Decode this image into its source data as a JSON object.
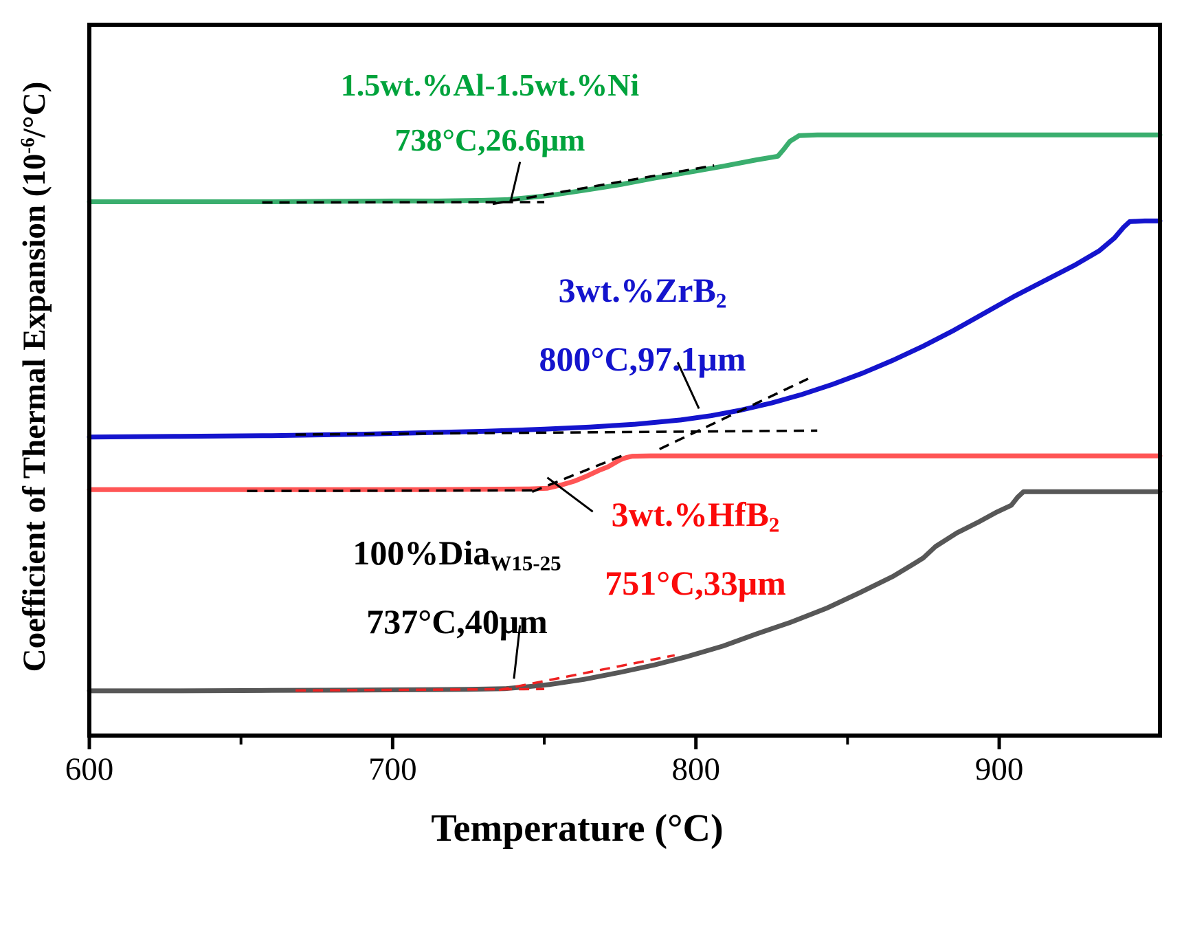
{
  "figure": {
    "y_axis_label": {
      "pre": "Coefficient of Thermal Expansion (10",
      "sup": "-6",
      "post": "/°C)"
    },
    "x_axis_label": "Temperature (°C)"
  },
  "annotations": {
    "al_ni": {
      "line1": "1.5wt.%Al-1.5wt.%Ni",
      "line2": "738°C,26.6μm",
      "color": "#00a33c"
    },
    "zrb2": {
      "line1_main": "3wt.%ZrB",
      "line1_sub": "2",
      "line2": "800°C,97.1μm",
      "color": "#1414cd"
    },
    "hfb2": {
      "line1_main": "3wt.%HfB",
      "line1_sub": "2",
      "line2": "751°C,33μm",
      "color": "#fb0a0a"
    },
    "dia": {
      "line1_main": "100%Dia",
      "line1_sub": "W15-25",
      "line2": "737°C,40μm",
      "color": "#000000"
    }
  },
  "chart_data": {
    "type": "line",
    "title": "",
    "xlabel": "Temperature (°C)",
    "ylabel": "Coefficient of Thermal Expansion (10^-6/°C)",
    "xlim": [
      600,
      953
    ],
    "ylim": [
      0,
      100
    ],
    "grid": false,
    "legend": "inline colored annotations at each curve",
    "x_ticks": {
      "major": [
        600,
        700,
        800,
        900
      ],
      "minor": [
        650,
        750,
        850
      ]
    },
    "y_ticks": [],
    "series": [
      {
        "id": "al-ni",
        "name": "1.5wt.%Al-1.5wt.%Ni",
        "color": "#3aae6e",
        "onset": {
          "temperature_c": 738,
          "expansion_um": 26.6
        },
        "points": [
          [
            600,
            75.1
          ],
          [
            620,
            75.1
          ],
          [
            640,
            75.1
          ],
          [
            660,
            75.1
          ],
          [
            680,
            75.15
          ],
          [
            700,
            75.2
          ],
          [
            715,
            75.2
          ],
          [
            730,
            75.3
          ],
          [
            738,
            75.4
          ],
          [
            745,
            75.7
          ],
          [
            752,
            76.0
          ],
          [
            763,
            76.7
          ],
          [
            775,
            77.5
          ],
          [
            786,
            78.4
          ],
          [
            797,
            79.2
          ],
          [
            809,
            80.1
          ],
          [
            820,
            81.0
          ],
          [
            827,
            81.5
          ],
          [
            829,
            82.5
          ],
          [
            831,
            83.6
          ],
          [
            834,
            84.4
          ],
          [
            840,
            84.5
          ],
          [
            860,
            84.5
          ],
          [
            880,
            84.5
          ],
          [
            900,
            84.5
          ],
          [
            920,
            84.5
          ],
          [
            940,
            84.5
          ],
          [
            953,
            84.5
          ]
        ]
      },
      {
        "id": "zrb2",
        "name": "3wt.%ZrB2",
        "color": "#1414cd",
        "onset": {
          "temperature_c": 800,
          "expansion_um": 97.1
        },
        "points": [
          [
            600,
            42.0
          ],
          [
            630,
            42.1
          ],
          [
            660,
            42.2
          ],
          [
            690,
            42.4
          ],
          [
            710,
            42.6
          ],
          [
            730,
            42.8
          ],
          [
            750,
            43.1
          ],
          [
            765,
            43.4
          ],
          [
            780,
            43.8
          ],
          [
            795,
            44.4
          ],
          [
            805,
            45.0
          ],
          [
            815,
            45.8
          ],
          [
            825,
            46.8
          ],
          [
            835,
            48.0
          ],
          [
            845,
            49.4
          ],
          [
            855,
            51.0
          ],
          [
            865,
            52.8
          ],
          [
            875,
            54.8
          ],
          [
            885,
            57.0
          ],
          [
            895,
            59.4
          ],
          [
            905,
            61.8
          ],
          [
            915,
            64.0
          ],
          [
            925,
            66.2
          ],
          [
            933,
            68.2
          ],
          [
            938,
            70.0
          ],
          [
            941,
            71.5
          ],
          [
            943,
            72.3
          ],
          [
            948,
            72.4
          ],
          [
            953,
            72.4
          ]
        ]
      },
      {
        "id": "hfb2",
        "name": "3wt.%HfB2",
        "color": "#ff5555",
        "onset": {
          "temperature_c": 751,
          "expansion_um": 33
        },
        "points": [
          [
            600,
            34.6
          ],
          [
            630,
            34.6
          ],
          [
            660,
            34.6
          ],
          [
            690,
            34.6
          ],
          [
            710,
            34.6
          ],
          [
            730,
            34.65
          ],
          [
            745,
            34.7
          ],
          [
            751,
            34.8
          ],
          [
            756,
            35.3
          ],
          [
            760,
            35.8
          ],
          [
            764,
            36.5
          ],
          [
            768,
            37.3
          ],
          [
            771,
            37.8
          ],
          [
            773,
            38.3
          ],
          [
            775,
            38.8
          ],
          [
            777,
            39.1
          ],
          [
            779,
            39.3
          ],
          [
            785,
            39.35
          ],
          [
            800,
            39.35
          ],
          [
            830,
            39.35
          ],
          [
            860,
            39.35
          ],
          [
            900,
            39.35
          ],
          [
            930,
            39.35
          ],
          [
            953,
            39.35
          ]
        ]
      },
      {
        "id": "dia",
        "name": "100%Dia W15-25",
        "color": "#575757",
        "onset": {
          "temperature_c": 737,
          "expansion_um": 40
        },
        "points": [
          [
            600,
            6.3
          ],
          [
            630,
            6.3
          ],
          [
            660,
            6.35
          ],
          [
            690,
            6.4
          ],
          [
            710,
            6.45
          ],
          [
            725,
            6.5
          ],
          [
            737,
            6.6
          ],
          [
            745,
            6.9
          ],
          [
            752,
            7.2
          ],
          [
            763,
            7.9
          ],
          [
            775,
            8.9
          ],
          [
            786,
            9.9
          ],
          [
            797,
            11.1
          ],
          [
            809,
            12.6
          ],
          [
            820,
            14.3
          ],
          [
            831,
            15.9
          ],
          [
            843,
            17.9
          ],
          [
            854,
            20.1
          ],
          [
            865,
            22.4
          ],
          [
            872,
            24.2
          ],
          [
            875,
            25.0
          ],
          [
            879,
            26.6
          ],
          [
            886,
            28.5
          ],
          [
            893,
            30.0
          ],
          [
            899,
            31.4
          ],
          [
            904,
            32.4
          ],
          [
            906,
            33.5
          ],
          [
            908,
            34.3
          ],
          [
            915,
            34.3
          ],
          [
            930,
            34.3
          ],
          [
            953,
            34.3
          ]
        ]
      }
    ],
    "dashed_lines": [
      {
        "id": "alni-baseline",
        "color": "#000000",
        "from": [
          657,
          75.0
        ],
        "to": [
          750,
          75.05
        ]
      },
      {
        "id": "alni-tangent",
        "color": "#000000",
        "from": [
          733,
          74.8
        ],
        "to": [
          806,
          80.2
        ]
      },
      {
        "id": "zrb2-baseline",
        "color": "#000000",
        "from": [
          668,
          42.35
        ],
        "to": [
          840,
          42.9
        ]
      },
      {
        "id": "zrb2-tangent",
        "color": "#000000",
        "from": [
          788,
          40.3
        ],
        "to": [
          837,
          50.2
        ]
      },
      {
        "id": "hfb2-baseline",
        "color": "#000000",
        "from": [
          652,
          34.4
        ],
        "to": [
          748,
          34.5
        ]
      },
      {
        "id": "hfb2-tangent",
        "color": "#000000",
        "from": [
          746,
          34.3
        ],
        "to": [
          777,
          39.6
        ]
      },
      {
        "id": "dia-baseline",
        "color": "#ee2222",
        "from": [
          668,
          6.35
        ],
        "to": [
          750,
          6.55
        ]
      },
      {
        "id": "dia-tangent",
        "color": "#ee2222",
        "from": [
          735,
          6.4
        ],
        "to": [
          793,
          11.3
        ]
      }
    ],
    "leader_lines": [
      {
        "id": "alni-leader",
        "from": [
          742,
          80.7
        ],
        "to": [
          739,
          75.3
        ]
      },
      {
        "id": "zrb2-leader",
        "from": [
          794,
          52.5
        ],
        "to": [
          801,
          46.0
        ]
      },
      {
        "id": "hfb2-leader",
        "from": [
          766,
          31.5
        ],
        "to": [
          751,
          36.3
        ]
      },
      {
        "id": "dia-leader",
        "from": [
          742,
          15.5
        ],
        "to": [
          740,
          8.0
        ]
      }
    ]
  }
}
